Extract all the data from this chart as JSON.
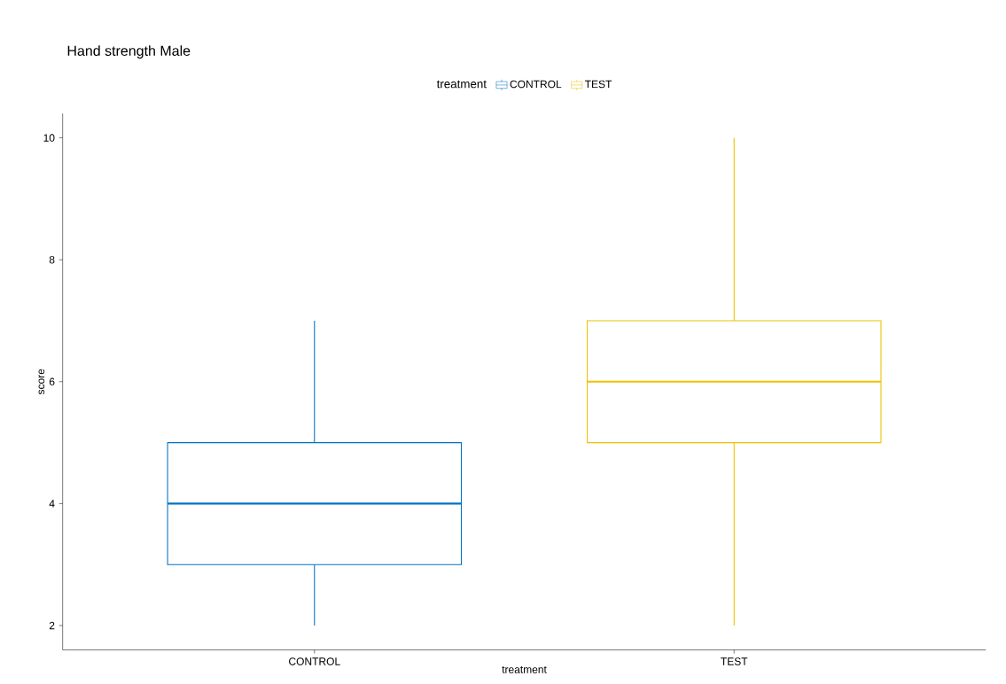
{
  "chart_data": {
    "type": "box",
    "title": "Hand strength Male",
    "xlabel": "treatment",
    "ylabel": "score",
    "legend_title": "treatment",
    "categories": [
      "CONTROL",
      "TEST"
    ],
    "series": [
      {
        "name": "CONTROL",
        "color": "#0073c2",
        "boxes": [
          {
            "low": 2,
            "q1": 3,
            "median": 4,
            "q3": 5,
            "high": 7
          },
          null
        ]
      },
      {
        "name": "TEST",
        "color": "#efc000",
        "boxes": [
          null,
          {
            "low": 2,
            "q1": 5,
            "median": 6,
            "q3": 7,
            "high": 10
          }
        ]
      }
    ],
    "ylim": [
      1.6,
      10.4
    ],
    "yticks": [
      2,
      4,
      6,
      8,
      10
    ],
    "grid": false,
    "legend": "top"
  }
}
